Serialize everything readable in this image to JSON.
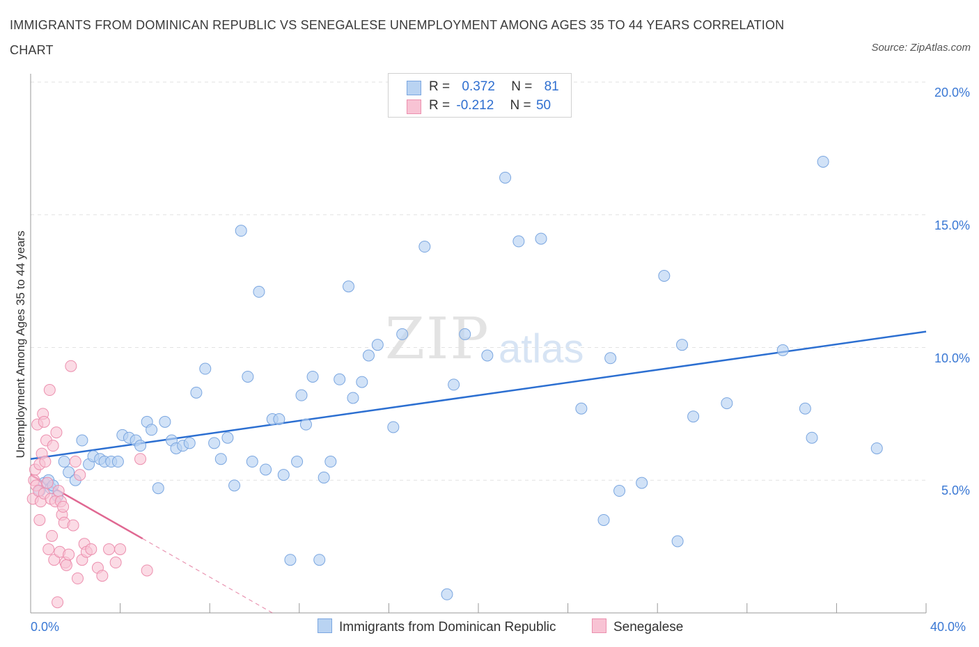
{
  "header": {
    "title": "IMMIGRANTS FROM DOMINICAN REPUBLIC VS SENEGALESE UNEMPLOYMENT AMONG AGES 35 TO 44 YEARS CORRELATION CHART",
    "source": "Source: ZipAtlas.com"
  },
  "watermark": {
    "zip": "ZIP",
    "atlas": "atlas"
  },
  "legend_top": {
    "rows": [
      {
        "r_label": "R =",
        "r_value": "0.372",
        "n_label": "N =",
        "n_value": "81"
      },
      {
        "r_label": "R =",
        "r_value": "-0.212",
        "n_label": "N =",
        "n_value": "50"
      }
    ]
  },
  "colors": {
    "series1_fill": "#b9d3f2",
    "series1_stroke": "#7aa6e0",
    "series1_line": "#2c6fd1",
    "series2_fill": "#f8c3d4",
    "series2_stroke": "#ec8fae",
    "series2_line": "#e06892",
    "grid": "#e2e2e2",
    "axis_text": "#3a78d4"
  },
  "chart_data": {
    "type": "scatter",
    "title": "IMMIGRANTS FROM DOMINICAN REPUBLIC VS SENEGALESE UNEMPLOYMENT AMONG AGES 35 TO 44 YEARS CORRELATION CHART",
    "xlabel": "",
    "ylabel": "Unemployment Among Ages 35 to 44 years",
    "xlim": [
      0,
      40
    ],
    "ylim": [
      0,
      20
    ],
    "x_tick_labels": [
      "0.0%",
      "40.0%"
    ],
    "y_ticks": [
      5,
      10,
      15,
      20
    ],
    "y_tick_labels": [
      "5.0%",
      "10.0%",
      "15.0%",
      "20.0%"
    ],
    "grid": true,
    "legend_position": "bottom",
    "series": [
      {
        "name": "Immigrants from Dominican Republic",
        "R": 0.372,
        "N": 81,
        "trend": {
          "x": [
            0,
            40
          ],
          "y": [
            5.8,
            10.6
          ]
        },
        "points": [
          [
            0.4,
            4.6
          ],
          [
            0.6,
            4.9
          ],
          [
            0.8,
            5.0
          ],
          [
            0.9,
            4.7
          ],
          [
            1.0,
            4.8
          ],
          [
            1.2,
            4.4
          ],
          [
            1.5,
            5.7
          ],
          [
            1.7,
            5.3
          ],
          [
            2.0,
            5.0
          ],
          [
            2.3,
            6.5
          ],
          [
            2.6,
            5.6
          ],
          [
            2.8,
            5.9
          ],
          [
            3.1,
            5.8
          ],
          [
            3.3,
            5.7
          ],
          [
            3.6,
            5.7
          ],
          [
            3.9,
            5.7
          ],
          [
            4.1,
            6.7
          ],
          [
            4.4,
            6.6
          ],
          [
            4.7,
            6.5
          ],
          [
            4.9,
            6.3
          ],
          [
            5.2,
            7.2
          ],
          [
            5.4,
            6.9
          ],
          [
            5.7,
            4.7
          ],
          [
            6.0,
            7.2
          ],
          [
            6.3,
            6.5
          ],
          [
            6.5,
            6.2
          ],
          [
            6.8,
            6.3
          ],
          [
            7.1,
            6.4
          ],
          [
            7.4,
            8.3
          ],
          [
            7.8,
            9.2
          ],
          [
            8.2,
            6.4
          ],
          [
            8.5,
            5.8
          ],
          [
            8.8,
            6.6
          ],
          [
            9.1,
            4.8
          ],
          [
            9.4,
            14.4
          ],
          [
            9.7,
            8.9
          ],
          [
            9.9,
            5.7
          ],
          [
            10.2,
            12.1
          ],
          [
            10.5,
            5.4
          ],
          [
            10.8,
            7.3
          ],
          [
            11.1,
            7.3
          ],
          [
            11.3,
            5.2
          ],
          [
            11.6,
            2.0
          ],
          [
            11.9,
            5.7
          ],
          [
            12.1,
            8.2
          ],
          [
            12.3,
            7.1
          ],
          [
            12.6,
            8.9
          ],
          [
            12.9,
            2.0
          ],
          [
            13.1,
            5.1
          ],
          [
            13.4,
            5.7
          ],
          [
            13.8,
            8.8
          ],
          [
            14.2,
            12.3
          ],
          [
            14.4,
            8.1
          ],
          [
            14.8,
            8.7
          ],
          [
            15.1,
            9.7
          ],
          [
            15.5,
            10.1
          ],
          [
            16.2,
            7.0
          ],
          [
            16.6,
            10.5
          ],
          [
            17.6,
            13.8
          ],
          [
            18.6,
            0.7
          ],
          [
            18.9,
            8.6
          ],
          [
            19.4,
            10.5
          ],
          [
            20.4,
            9.7
          ],
          [
            21.2,
            16.4
          ],
          [
            21.8,
            14.0
          ],
          [
            22.8,
            14.1
          ],
          [
            24.6,
            7.7
          ],
          [
            25.6,
            3.5
          ],
          [
            25.9,
            9.6
          ],
          [
            26.3,
            4.6
          ],
          [
            27.3,
            4.9
          ],
          [
            28.3,
            12.7
          ],
          [
            28.9,
            2.7
          ],
          [
            29.1,
            10.1
          ],
          [
            29.6,
            7.4
          ],
          [
            31.1,
            7.9
          ],
          [
            33.6,
            9.9
          ],
          [
            34.6,
            7.7
          ],
          [
            34.9,
            6.6
          ],
          [
            35.4,
            17.0
          ],
          [
            37.8,
            6.2
          ]
        ]
      },
      {
        "name": "Senegalese",
        "R": -0.212,
        "N": 50,
        "trend": {
          "x": [
            0,
            5.0
          ],
          "y": [
            5.2,
            2.8
          ]
        },
        "trend_dashed": {
          "x": [
            5.0,
            10.8
          ],
          "y": [
            2.8,
            0.0
          ]
        },
        "points": [
          [
            0.1,
            4.3
          ],
          [
            0.15,
            5.0
          ],
          [
            0.2,
            5.4
          ],
          [
            0.25,
            4.8
          ],
          [
            0.3,
            7.1
          ],
          [
            0.35,
            4.6
          ],
          [
            0.4,
            5.6
          ],
          [
            0.4,
            3.5
          ],
          [
            0.45,
            4.2
          ],
          [
            0.5,
            6.0
          ],
          [
            0.55,
            7.5
          ],
          [
            0.6,
            7.2
          ],
          [
            0.6,
            4.5
          ],
          [
            0.65,
            5.7
          ],
          [
            0.7,
            6.5
          ],
          [
            0.75,
            4.9
          ],
          [
            0.8,
            2.4
          ],
          [
            0.85,
            8.4
          ],
          [
            0.9,
            4.3
          ],
          [
            0.95,
            2.9
          ],
          [
            1.0,
            6.3
          ],
          [
            1.05,
            2.0
          ],
          [
            1.1,
            4.2
          ],
          [
            1.15,
            6.8
          ],
          [
            1.2,
            0.4
          ],
          [
            1.25,
            4.6
          ],
          [
            1.3,
            2.3
          ],
          [
            1.35,
            4.2
          ],
          [
            1.4,
            3.7
          ],
          [
            1.45,
            4.0
          ],
          [
            1.5,
            3.4
          ],
          [
            1.55,
            1.9
          ],
          [
            1.6,
            1.8
          ],
          [
            1.7,
            2.2
          ],
          [
            1.8,
            9.3
          ],
          [
            1.9,
            3.3
          ],
          [
            2.0,
            5.7
          ],
          [
            2.1,
            1.3
          ],
          [
            2.2,
            5.2
          ],
          [
            2.3,
            2.0
          ],
          [
            2.4,
            2.6
          ],
          [
            2.5,
            2.3
          ],
          [
            2.7,
            2.4
          ],
          [
            3.0,
            1.7
          ],
          [
            3.2,
            1.4
          ],
          [
            3.5,
            2.4
          ],
          [
            3.8,
            1.9
          ],
          [
            4.0,
            2.4
          ],
          [
            4.9,
            5.8
          ],
          [
            5.2,
            1.6
          ]
        ]
      }
    ]
  },
  "legend_bottom": {
    "items": [
      {
        "label": "Immigrants from Dominican Republic"
      },
      {
        "label": "Senegalese"
      }
    ]
  }
}
